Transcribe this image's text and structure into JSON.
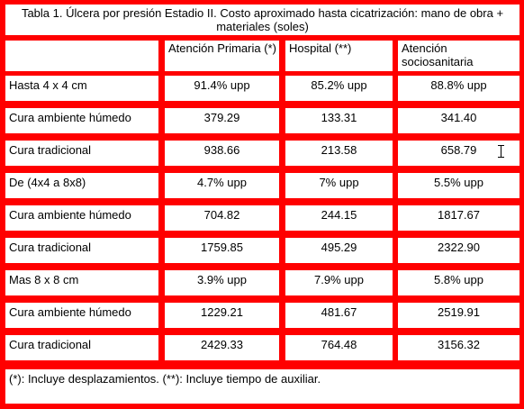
{
  "title": "Tabla 1. Úlcera por presión Estadio II. Costo aproximado hasta cicatrización: mano de obra + materiales (soles)",
  "headers": [
    "Atención Primaria (*)",
    "Hospital (**)",
    "Atención sociosanitaria"
  ],
  "rows": [
    {
      "label": "Hasta 4 x 4 cm",
      "values": [
        "91.4% upp",
        "85.2% upp",
        "88.8% upp"
      ]
    },
    {
      "label": "Cura ambiente húmedo",
      "values": [
        "379.29",
        "133.31",
        "341.40"
      ]
    },
    {
      "label": "Cura tradicional",
      "values": [
        "938.66",
        "213.58",
        "658.79"
      ]
    },
    {
      "label": "De (4x4 a 8x8)",
      "values": [
        "4.7% upp",
        "7% upp",
        "5.5% upp"
      ]
    },
    {
      "label": "Cura ambiente húmedo",
      "values": [
        "704.82",
        "244.15",
        "1817.67"
      ]
    },
    {
      "label": "Cura tradicional",
      "values": [
        "1759.85",
        "495.29",
        "2322.90"
      ]
    },
    {
      "label": "Mas 8 x 8 cm",
      "values": [
        "3.9% upp",
        "7.9% upp",
        "5.8% upp"
      ]
    },
    {
      "label": "Cura ambiente húmedo",
      "values": [
        "1229.21",
        "481.67",
        "2519.91"
      ]
    },
    {
      "label": "Cura tradicional",
      "values": [
        "2429.33",
        "764.48",
        "3156.32"
      ]
    }
  ],
  "footnote": "(*): Incluye desplazamientos. (**): Incluye tiempo de auxiliar."
}
